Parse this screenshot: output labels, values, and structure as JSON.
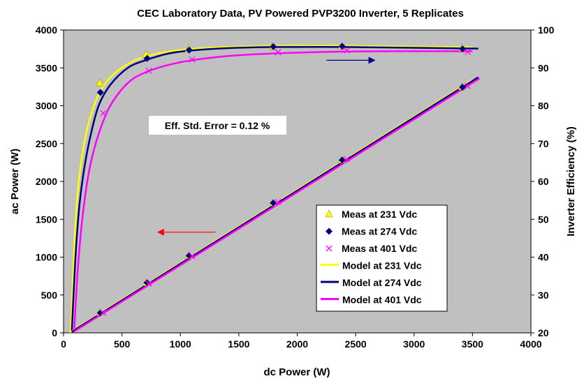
{
  "chart_data": {
    "type": "scatter",
    "title": "CEC Laboratory Data, PV Powered PVP3200 Inverter, 5 Replicates",
    "xlabel": "dc Power (W)",
    "ylabel": "ac Power (W)",
    "y2label": "Inverter Efficiency (%)",
    "xlim": [
      0,
      4000
    ],
    "ylim": [
      0,
      4000
    ],
    "y2lim": [
      20,
      100
    ],
    "xticks": [
      "0",
      "500",
      "1000",
      "1500",
      "2000",
      "2500",
      "3000",
      "3500",
      "4000"
    ],
    "yticks": [
      "0",
      "500",
      "1000",
      "1500",
      "2000",
      "2500",
      "3000",
      "3500",
      "4000"
    ],
    "y2ticks": [
      "20",
      "30",
      "40",
      "50",
      "60",
      "70",
      "80",
      "90",
      "100"
    ],
    "grid": false,
    "background": "#c0c0c0",
    "legend_position": "lower-right",
    "annotation": "Eff. Std. Error = 0.12 %",
    "series": [
      {
        "name": "Meas at 231 Vdc",
        "kind": "points",
        "marker": "triangle",
        "color": "#ffff00",
        "axis": "efficiency",
        "x": [
          310,
          705,
          1070,
          1790,
          2380,
          3410
        ],
        "y": [
          86.0,
          93.5,
          95.0,
          95.6,
          95.7,
          95.2
        ]
      },
      {
        "name": "Meas at 274 Vdc",
        "kind": "points",
        "marker": "diamond",
        "color": "#000080",
        "axis": "efficiency",
        "x": [
          315,
          715,
          1075,
          1795,
          2385,
          3415
        ],
        "y": [
          83.5,
          92.5,
          94.7,
          95.6,
          95.7,
          95.0
        ]
      },
      {
        "name": "Meas at 401 Vdc",
        "kind": "points",
        "marker": "x",
        "color": "#ff00ff",
        "axis": "efficiency",
        "x": [
          340,
          730,
          1100,
          1835,
          2425,
          3460
        ],
        "y": [
          78.0,
          89.2,
          92.2,
          94.1,
          94.6,
          94.2
        ]
      },
      {
        "name": "Model at 231 Vdc",
        "kind": "line",
        "color": "#ffff00",
        "axis": "efficiency",
        "x": [
          60,
          80,
          100,
          130,
          170,
          220,
          300,
          400,
          550,
          700,
          900,
          1100,
          1400,
          1800,
          2400,
          3000,
          3500
        ],
        "y": [
          20,
          34,
          48,
          60,
          69,
          76,
          83,
          87.5,
          91,
          93,
          94.3,
          95.0,
          95.5,
          95.8,
          95.8,
          95.6,
          95.4
        ]
      },
      {
        "name": "Model at 274 Vdc",
        "kind": "line",
        "color": "#000080",
        "axis": "efficiency",
        "x": [
          70,
          90,
          110,
          140,
          180,
          230,
          300,
          400,
          550,
          700,
          900,
          1100,
          1400,
          1800,
          2400,
          3000,
          3550
        ],
        "y": [
          20,
          33,
          44,
          55,
          64,
          72,
          80,
          85.5,
          90,
          92,
          93.8,
          94.6,
          95.2,
          95.5,
          95.5,
          95.3,
          95.1
        ]
      },
      {
        "name": "Model at 401 Vdc",
        "kind": "line",
        "color": "#ff00ff",
        "axis": "efficiency",
        "x": [
          90,
          120,
          160,
          220,
          300,
          400,
          550,
          700,
          900,
          1100,
          1400,
          1800,
          2400,
          3000,
          3500
        ],
        "y": [
          20,
          36,
          50,
          63,
          72.5,
          80,
          86,
          88.8,
          90.8,
          92,
          93.1,
          93.8,
          94.3,
          94.4,
          94.4
        ]
      },
      {
        "name": "Meas at 231 Vdc",
        "kind": "points",
        "marker": "triangle",
        "color": "#ffff00",
        "axis": "power",
        "x": [
          310,
          705,
          1070,
          1790,
          2380,
          3410
        ],
        "y": [
          267,
          659,
          1016,
          1711,
          2278,
          3246
        ]
      },
      {
        "name": "Meas at 274 Vdc",
        "kind": "points",
        "marker": "diamond",
        "color": "#000080",
        "axis": "power",
        "x": [
          315,
          715,
          1075,
          1795,
          2385,
          3415
        ],
        "y": [
          263,
          661,
          1018,
          1716,
          2282,
          3244
        ]
      },
      {
        "name": "Meas at 401 Vdc",
        "kind": "points",
        "marker": "x",
        "color": "#ff00ff",
        "axis": "power",
        "x": [
          340,
          730,
          1100,
          1835,
          2425,
          3460
        ],
        "y": [
          265,
          651,
          1014,
          1727,
          2294,
          3259
        ]
      },
      {
        "name": "Model at 231 Vdc",
        "kind": "line",
        "color": "#ffff00",
        "axis": "power",
        "x": [
          60,
          3500
        ],
        "y": [
          12,
          3340
        ]
      },
      {
        "name": "Model at 274 Vdc",
        "kind": "line",
        "color": "#000080",
        "axis": "power",
        "x": [
          70,
          3550
        ],
        "y": [
          14,
          3376
        ]
      },
      {
        "name": "Model at 401 Vdc",
        "kind": "line",
        "color": "#ff00ff",
        "axis": "power",
        "x": [
          90,
          3560
        ],
        "y": [
          18,
          3360
        ]
      }
    ],
    "arrows": [
      {
        "direction": "left",
        "color": "#ff0000",
        "axis": "power"
      },
      {
        "direction": "right",
        "color": "#000080",
        "axis": "efficiency"
      }
    ]
  }
}
